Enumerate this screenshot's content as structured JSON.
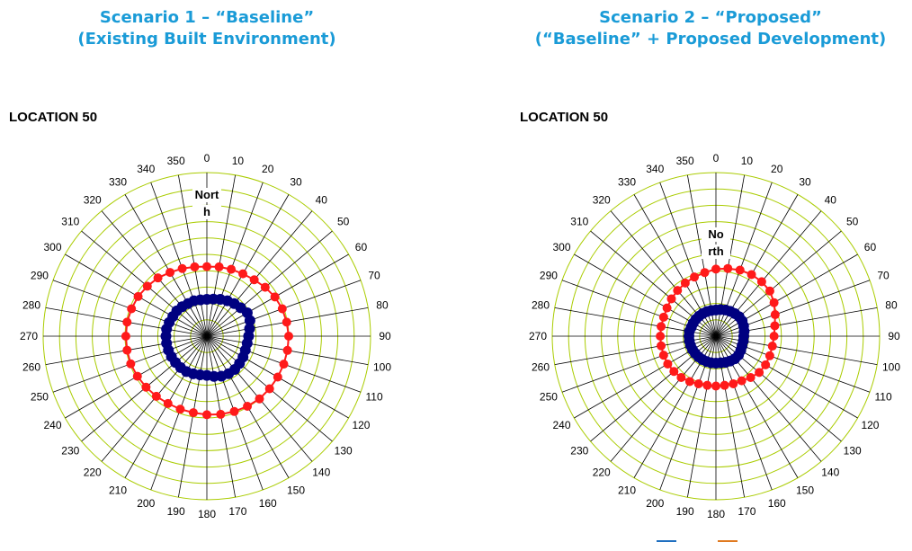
{
  "titles": {
    "scenario1": {
      "line1": "Scenario 1 – “Baseline”",
      "line2": "(Existing Built Environment)"
    },
    "scenario2": {
      "line1": "Scenario 2 – “Proposed”",
      "line2": "(“Baseline” + Proposed Development)"
    }
  },
  "location_labels": [
    "LOCATION 50",
    "LOCATION 50"
  ],
  "colors": {
    "grid": "#aacc00",
    "spoke": "#000000",
    "series_outer": "#ff1a1a",
    "series_inner": "#000080",
    "title": "#1a9bd7"
  },
  "chart_data": [
    {
      "type": "polar-scatter",
      "title": "Scenario 1 – “Baseline” (Existing Built Environment)",
      "north_label": "North",
      "angle_ticks": [
        "0",
        "10",
        "20",
        "30",
        "40",
        "50",
        "60",
        "70",
        "80",
        "90",
        "100",
        "110",
        "120",
        "130",
        "140",
        "150",
        "160",
        "170",
        "180",
        "190",
        "200",
        "210",
        "220",
        "230",
        "240",
        "250",
        "260",
        "270",
        "280",
        "290",
        "300",
        "310",
        "320",
        "330",
        "340",
        "350"
      ],
      "radial_range": [
        0,
        20
      ],
      "grid": true,
      "legend": "none",
      "series": [
        {
          "role": "outer",
          "angles": [
            0,
            10,
            20,
            30,
            40,
            50,
            60,
            70,
            80,
            90,
            100,
            110,
            120,
            130,
            140,
            150,
            160,
            170,
            180,
            190,
            200,
            210,
            220,
            230,
            240,
            250,
            260,
            270,
            280,
            290,
            300,
            310,
            320,
            330,
            340,
            350
          ],
          "values": [
            8.5,
            8.6,
            8.7,
            8.8,
            9.0,
            9.3,
            9.6,
            9.8,
            9.9,
            10.0,
            10.0,
            10.0,
            10.0,
            10.0,
            10.0,
            9.9,
            9.8,
            9.7,
            9.6,
            9.5,
            9.5,
            9.5,
            9.6,
            9.7,
            9.8,
            9.9,
            9.9,
            9.9,
            9.9,
            9.8,
            9.7,
            9.5,
            9.3,
            9.0,
            8.8,
            8.6
          ]
        },
        {
          "role": "inner",
          "angles": [
            0,
            10,
            20,
            30,
            40,
            50,
            60,
            70,
            80,
            90,
            100,
            110,
            120,
            130,
            140,
            150,
            160,
            170,
            180,
            190,
            200,
            210,
            220,
            230,
            240,
            250,
            260,
            270,
            280,
            290,
            300,
            310,
            320,
            330,
            340,
            350
          ],
          "values": [
            4.5,
            4.6,
            4.8,
            5.0,
            5.2,
            5.4,
            5.7,
            5.6,
            5.3,
            5.1,
            5.0,
            5.0,
            5.1,
            5.2,
            5.3,
            5.3,
            5.2,
            5.0,
            4.8,
            4.8,
            4.9,
            5.0,
            5.0,
            5.0,
            5.0,
            5.0,
            5.0,
            5.0,
            5.0,
            4.9,
            4.8,
            4.8,
            4.7,
            4.6,
            4.6,
            4.5
          ]
        }
      ]
    },
    {
      "type": "polar-scatter",
      "title": "Scenario 2 – “Proposed” (“Baseline” + Proposed Development)",
      "north_label": "North",
      "angle_ticks": [
        "0",
        "10",
        "20",
        "30",
        "40",
        "50",
        "60",
        "70",
        "80",
        "90",
        "100",
        "110",
        "120",
        "130",
        "140",
        "150",
        "160",
        "170",
        "180",
        "190",
        "200",
        "210",
        "220",
        "230",
        "240",
        "250",
        "260",
        "270",
        "280",
        "290",
        "300",
        "310",
        "320",
        "330",
        "340",
        "350"
      ],
      "radial_range": [
        0,
        20
      ],
      "grid": true,
      "legend": "bottom-right",
      "series": [
        {
          "role": "outer",
          "angles": [
            0,
            10,
            20,
            30,
            40,
            50,
            60,
            70,
            80,
            90,
            100,
            110,
            120,
            130,
            140,
            150,
            160,
            170,
            180,
            190,
            200,
            210,
            220,
            230,
            240,
            250,
            260,
            270,
            280,
            290,
            300,
            310,
            320,
            330,
            340,
            350
          ],
          "values": [
            8.2,
            8.4,
            8.6,
            8.7,
            8.7,
            8.6,
            8.2,
            7.7,
            7.3,
            7.1,
            7.0,
            7.0,
            7.0,
            6.9,
            6.6,
            6.3,
            6.2,
            6.1,
            6.1,
            6.1,
            6.2,
            6.4,
            6.6,
            6.7,
            6.8,
            6.8,
            6.8,
            6.8,
            6.8,
            6.8,
            6.9,
            7.1,
            7.3,
            7.5,
            7.7,
            7.9
          ]
        },
        {
          "role": "inner",
          "angles": [
            0,
            10,
            20,
            30,
            40,
            50,
            60,
            70,
            80,
            90,
            100,
            110,
            120,
            130,
            140,
            150,
            160,
            170,
            180,
            190,
            200,
            210,
            220,
            230,
            240,
            250,
            260,
            270,
            280,
            290,
            300,
            310,
            320,
            330,
            340,
            350
          ],
          "values": [
            3.2,
            3.3,
            3.4,
            3.5,
            3.6,
            3.7,
            3.7,
            3.6,
            3.5,
            3.4,
            3.4,
            3.4,
            3.5,
            3.6,
            3.6,
            3.5,
            3.4,
            3.3,
            3.3,
            3.3,
            3.3,
            3.3,
            3.3,
            3.3,
            3.3,
            3.3,
            3.3,
            3.3,
            3.3,
            3.2,
            3.2,
            3.2,
            3.2,
            3.2,
            3.2,
            3.2
          ]
        }
      ]
    }
  ]
}
